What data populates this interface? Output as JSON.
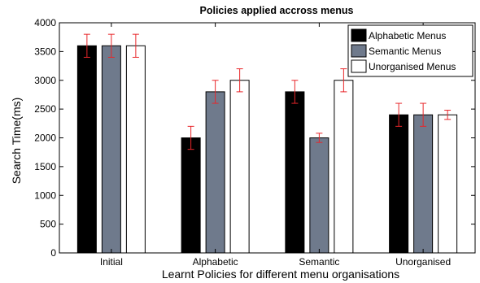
{
  "chart_data": {
    "type": "bar",
    "title": "Policies applied accross menus",
    "xlabel": "Learnt Policies for different menu organisations",
    "ylabel": "Search Time(ms)",
    "categories": [
      "Initial",
      "Alphabetic",
      "Semantic",
      "Unorganised"
    ],
    "ylim": [
      0,
      4000
    ],
    "yticks": [
      0,
      500,
      1000,
      1500,
      2000,
      2500,
      3000,
      3500,
      4000
    ],
    "grid": false,
    "legend_position": "top-right",
    "error_bar_color": "#e8262a",
    "series": [
      {
        "name": "Alphabetic Menus",
        "color": "#000000",
        "values": [
          3600,
          2000,
          2800,
          2400
        ],
        "errors": [
          200,
          200,
          200,
          200
        ]
      },
      {
        "name": "Semantic Menus",
        "color": "#6f7a8c",
        "values": [
          3600,
          2800,
          2000,
          2400
        ],
        "errors": [
          200,
          200,
          80,
          200
        ]
      },
      {
        "name": "Unorganised Menus",
        "color": "#ffffff",
        "values": [
          3600,
          3000,
          3000,
          2400
        ],
        "errors": [
          200,
          200,
          200,
          80
        ]
      }
    ]
  }
}
